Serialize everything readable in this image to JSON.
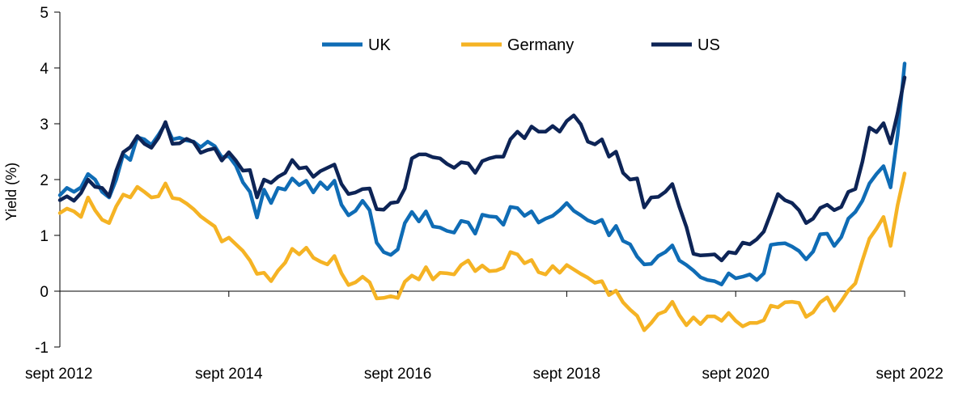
{
  "chart_data": {
    "type": "line",
    "title": "",
    "xlabel": "",
    "ylabel": "Yield (%)",
    "ylim": [
      -1,
      5
    ],
    "yticks": [
      -1,
      0,
      1,
      2,
      3,
      4,
      5
    ],
    "xlim": [
      "2012-09",
      "2022-09"
    ],
    "xtick_labels": [
      "sept 2012",
      "sept 2014",
      "sept 2016",
      "sept 2018",
      "sept 2020",
      "sept 2022"
    ],
    "grid": false,
    "legend_position": "top-center",
    "x": [
      "2012-09",
      "2012-10",
      "2012-11",
      "2012-12",
      "2013-01",
      "2013-02",
      "2013-03",
      "2013-04",
      "2013-05",
      "2013-06",
      "2013-07",
      "2013-08",
      "2013-09",
      "2013-10",
      "2013-11",
      "2013-12",
      "2014-01",
      "2014-02",
      "2014-03",
      "2014-04",
      "2014-05",
      "2014-06",
      "2014-07",
      "2014-08",
      "2014-09",
      "2014-10",
      "2014-11",
      "2014-12",
      "2015-01",
      "2015-02",
      "2015-03",
      "2015-04",
      "2015-05",
      "2015-06",
      "2015-07",
      "2015-08",
      "2015-09",
      "2015-10",
      "2015-11",
      "2015-12",
      "2016-01",
      "2016-02",
      "2016-03",
      "2016-04",
      "2016-05",
      "2016-06",
      "2016-07",
      "2016-08",
      "2016-09",
      "2016-10",
      "2016-11",
      "2016-12",
      "2017-01",
      "2017-02",
      "2017-03",
      "2017-04",
      "2017-05",
      "2017-06",
      "2017-07",
      "2017-08",
      "2017-09",
      "2017-10",
      "2017-11",
      "2017-12",
      "2018-01",
      "2018-02",
      "2018-03",
      "2018-04",
      "2018-05",
      "2018-06",
      "2018-07",
      "2018-08",
      "2018-09",
      "2018-10",
      "2018-11",
      "2018-12",
      "2019-01",
      "2019-02",
      "2019-03",
      "2019-04",
      "2019-05",
      "2019-06",
      "2019-07",
      "2019-08",
      "2019-09",
      "2019-10",
      "2019-11",
      "2019-12",
      "2020-01",
      "2020-02",
      "2020-03",
      "2020-04",
      "2020-05",
      "2020-06",
      "2020-07",
      "2020-08",
      "2020-09",
      "2020-10",
      "2020-11",
      "2020-12",
      "2021-01",
      "2021-02",
      "2021-03",
      "2021-04",
      "2021-05",
      "2021-06",
      "2021-07",
      "2021-08",
      "2021-09",
      "2021-10",
      "2021-11",
      "2021-12",
      "2022-01",
      "2022-02",
      "2022-03",
      "2022-04",
      "2022-05",
      "2022-06",
      "2022-07",
      "2022-08",
      "2022-09"
    ],
    "series": [
      {
        "name": "UK",
        "color": "#0f6cb5",
        "values": [
          1.72,
          1.85,
          1.78,
          1.86,
          2.1,
          2.0,
          1.78,
          1.68,
          2.0,
          2.45,
          2.35,
          2.76,
          2.72,
          2.62,
          2.8,
          3.0,
          2.72,
          2.75,
          2.7,
          2.68,
          2.58,
          2.68,
          2.6,
          2.4,
          2.42,
          2.25,
          1.95,
          1.78,
          1.32,
          1.82,
          1.58,
          1.85,
          1.82,
          2.02,
          1.9,
          1.98,
          1.77,
          1.95,
          1.83,
          1.98,
          1.55,
          1.36,
          1.44,
          1.62,
          1.45,
          0.87,
          0.7,
          0.65,
          0.75,
          1.22,
          1.42,
          1.25,
          1.43,
          1.16,
          1.14,
          1.08,
          1.05,
          1.26,
          1.23,
          1.03,
          1.37,
          1.34,
          1.33,
          1.19,
          1.51,
          1.49,
          1.35,
          1.43,
          1.23,
          1.3,
          1.35,
          1.45,
          1.58,
          1.44,
          1.36,
          1.27,
          1.22,
          1.28,
          1.0,
          1.17,
          0.9,
          0.84,
          0.62,
          0.48,
          0.49,
          0.63,
          0.7,
          0.82,
          0.55,
          0.47,
          0.37,
          0.25,
          0.2,
          0.18,
          0.12,
          0.32,
          0.23,
          0.26,
          0.3,
          0.2,
          0.32,
          0.83,
          0.85,
          0.86,
          0.8,
          0.72,
          0.57,
          0.71,
          1.02,
          1.03,
          0.81,
          0.97,
          1.3,
          1.42,
          1.62,
          1.93,
          2.1,
          2.24,
          1.86,
          2.8,
          4.08
        ]
      },
      {
        "name": "Germany",
        "color": "#f5b324",
        "values": [
          1.4,
          1.48,
          1.43,
          1.33,
          1.68,
          1.45,
          1.28,
          1.22,
          1.52,
          1.73,
          1.68,
          1.87,
          1.78,
          1.68,
          1.7,
          1.93,
          1.67,
          1.65,
          1.57,
          1.47,
          1.34,
          1.25,
          1.16,
          0.89,
          0.96,
          0.84,
          0.72,
          0.55,
          0.31,
          0.33,
          0.18,
          0.37,
          0.51,
          0.76,
          0.66,
          0.78,
          0.6,
          0.53,
          0.48,
          0.63,
          0.32,
          0.11,
          0.16,
          0.26,
          0.16,
          -0.13,
          -0.12,
          -0.09,
          -0.12,
          0.17,
          0.28,
          0.21,
          0.43,
          0.21,
          0.33,
          0.32,
          0.3,
          0.47,
          0.55,
          0.36,
          0.46,
          0.36,
          0.37,
          0.42,
          0.7,
          0.66,
          0.5,
          0.56,
          0.34,
          0.3,
          0.45,
          0.33,
          0.47,
          0.39,
          0.31,
          0.24,
          0.15,
          0.18,
          -0.07,
          0.01,
          -0.2,
          -0.33,
          -0.44,
          -0.7,
          -0.57,
          -0.41,
          -0.36,
          -0.19,
          -0.43,
          -0.61,
          -0.47,
          -0.59,
          -0.45,
          -0.45,
          -0.53,
          -0.39,
          -0.53,
          -0.63,
          -0.57,
          -0.57,
          -0.52,
          -0.26,
          -0.29,
          -0.2,
          -0.19,
          -0.21,
          -0.46,
          -0.38,
          -0.2,
          -0.11,
          -0.35,
          -0.18,
          0.01,
          0.14,
          0.55,
          0.94,
          1.12,
          1.33,
          0.81,
          1.54,
          2.11
        ]
      },
      {
        "name": "US",
        "color": "#0d2456",
        "values": [
          1.63,
          1.7,
          1.62,
          1.76,
          2.0,
          1.87,
          1.85,
          1.7,
          2.16,
          2.49,
          2.58,
          2.78,
          2.64,
          2.57,
          2.75,
          3.03,
          2.64,
          2.65,
          2.73,
          2.67,
          2.48,
          2.53,
          2.56,
          2.34,
          2.49,
          2.34,
          2.16,
          2.17,
          1.68,
          2.0,
          1.94,
          2.05,
          2.12,
          2.35,
          2.2,
          2.22,
          2.05,
          2.15,
          2.21,
          2.27,
          1.92,
          1.74,
          1.77,
          1.83,
          1.84,
          1.47,
          1.46,
          1.58,
          1.6,
          1.84,
          2.38,
          2.45,
          2.45,
          2.4,
          2.38,
          2.28,
          2.21,
          2.31,
          2.29,
          2.12,
          2.33,
          2.38,
          2.41,
          2.41,
          2.72,
          2.86,
          2.74,
          2.95,
          2.86,
          2.86,
          2.96,
          2.86,
          3.05,
          3.15,
          2.99,
          2.68,
          2.63,
          2.72,
          2.41,
          2.5,
          2.12,
          2.0,
          2.02,
          1.5,
          1.68,
          1.69,
          1.78,
          1.92,
          1.51,
          1.15,
          0.67,
          0.64,
          0.65,
          0.66,
          0.55,
          0.7,
          0.68,
          0.87,
          0.84,
          0.93,
          1.07,
          1.4,
          1.74,
          1.63,
          1.58,
          1.45,
          1.22,
          1.3,
          1.49,
          1.55,
          1.45,
          1.51,
          1.78,
          1.83,
          2.32,
          2.93,
          2.85,
          3.01,
          2.65,
          3.19,
          3.83
        ]
      }
    ]
  }
}
